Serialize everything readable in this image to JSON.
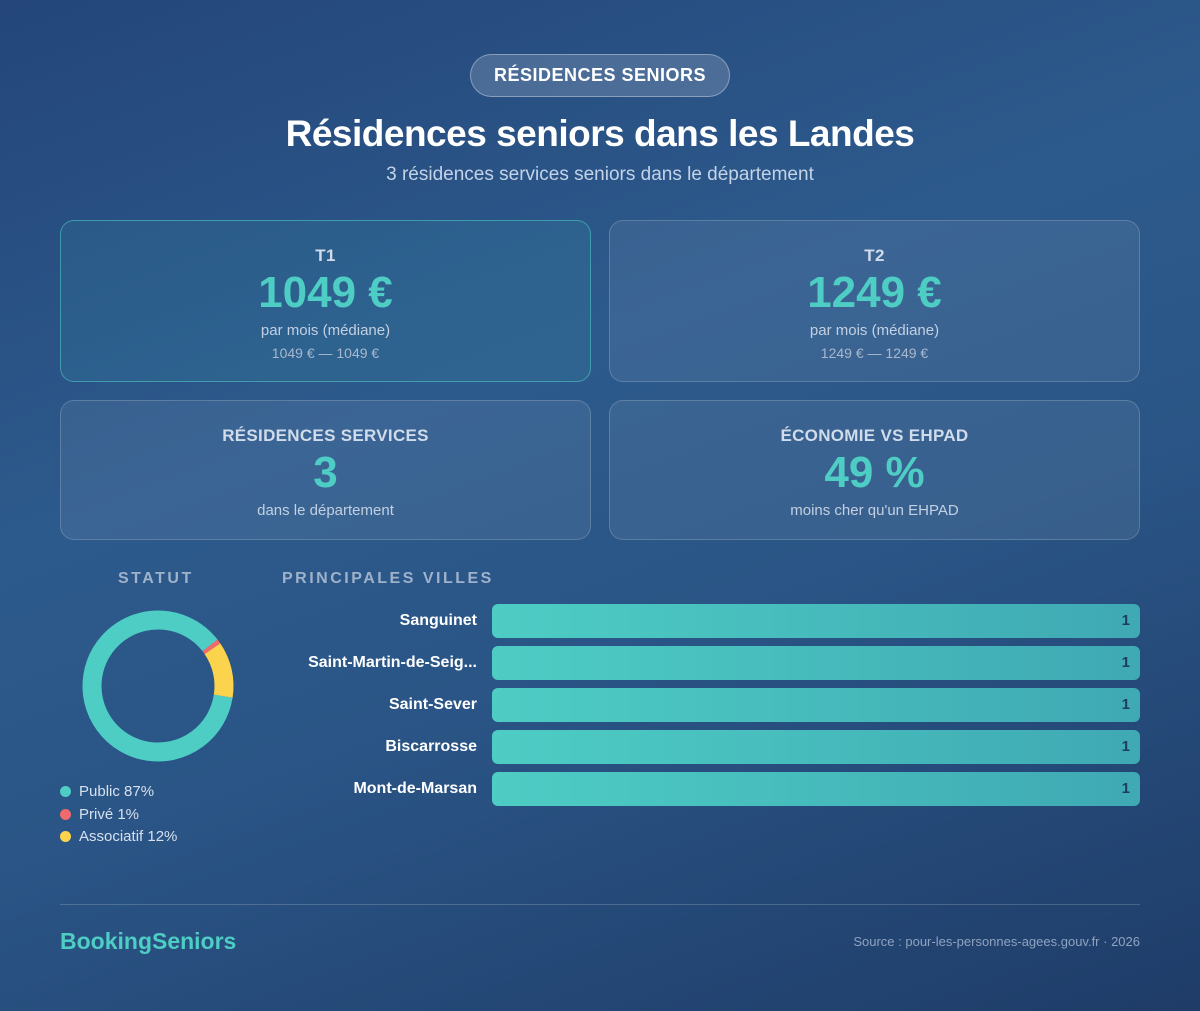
{
  "header": {
    "badge": "RÉSIDENCES SENIORS",
    "title": "Résidences seniors dans les Landes",
    "subtitle": "3 résidences services seniors dans le département"
  },
  "cards": {
    "t1": {
      "label": "T1",
      "value": "1049 €",
      "sub": "par mois (médiane)",
      "range": "1049 € — 1049 €"
    },
    "t2": {
      "label": "T2",
      "value": "1249 €",
      "sub": "par mois (médiane)",
      "range": "1249 € — 1249 €"
    },
    "residences": {
      "label": "RÉSIDENCES SERVICES",
      "value": "3",
      "sub": "dans le département"
    },
    "economie": {
      "label": "ÉCONOMIE VS EHPAD",
      "value": "49 %",
      "sub": "moins cher qu'un EHPAD"
    }
  },
  "colors": {
    "accent": "#4ecdc4",
    "public": "#4ecdc4",
    "prive": "#f06b6b",
    "associatif": "#fcd34d"
  },
  "chart_data": [
    {
      "type": "pie",
      "title": "STATUT",
      "slices": [
        {
          "label": "Public 87%",
          "value": 87,
          "color": "#4ecdc4"
        },
        {
          "label": "Privé 1%",
          "value": 1,
          "color": "#f06b6b"
        },
        {
          "label": "Associatif 12%",
          "value": 12,
          "color": "#fcd34d"
        }
      ]
    },
    {
      "type": "bar",
      "orientation": "horizontal",
      "title": "PRINCIPALES VILLES",
      "categories": [
        "Sanguinet",
        "Saint-Martin-de-Seig...",
        "Saint-Sever",
        "Biscarrosse",
        "Mont-de-Marsan"
      ],
      "values": [
        1,
        1,
        1,
        1,
        1
      ],
      "xlim": [
        0,
        1
      ]
    }
  ],
  "footer": {
    "brand": "BookingSeniors",
    "source": "Source : pour-les-personnes-agees.gouv.fr · 2026"
  }
}
